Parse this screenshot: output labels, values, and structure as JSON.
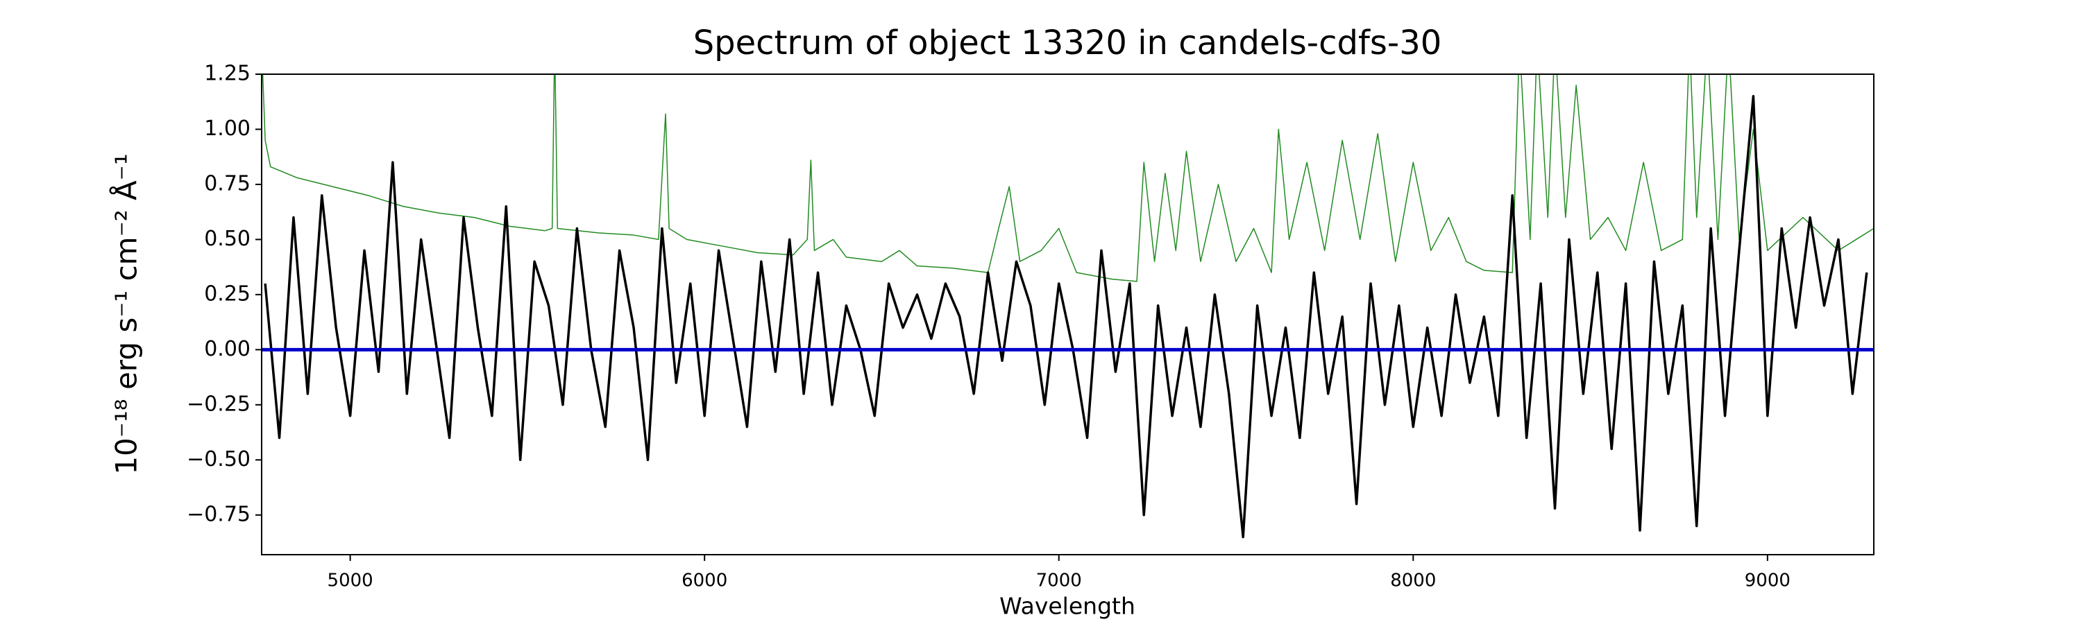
{
  "chart_data": {
    "type": "line",
    "title": "Spectrum of object 13320 in candels-cdfs-30",
    "xlabel": "Wavelength",
    "ylabel": "10⁻¹⁸ erg s⁻¹ cm⁻² Å⁻¹",
    "xlim": [
      4750,
      9300
    ],
    "ylim": [
      -0.93,
      1.25
    ],
    "xticks": [
      5000,
      6000,
      7000,
      8000,
      9000
    ],
    "yticks": [
      1.25,
      {
        "value": 1.0,
        "label": "1.00"
      },
      0.75,
      {
        "value": 0.5,
        "label": "0.50"
      },
      0.25,
      {
        "value": 0,
        "label": "0.00"
      },
      {
        "value": -0.25,
        "label": "−0.25"
      },
      {
        "value": -0.5,
        "label": "−0.50"
      },
      {
        "value": -0.75,
        "label": "−0.75"
      }
    ],
    "series": [
      {
        "color": "#228b22",
        "width": 1.5,
        "x": [
          4752,
          4760,
          4775,
          4850,
          4950,
          5050,
          5150,
          5250,
          5350,
          5450,
          5550,
          5570,
          5577,
          5585,
          5700,
          5800,
          5870,
          5890,
          5900,
          5950,
          6050,
          6150,
          6250,
          6290,
          6300,
          6310,
          6363,
          6400,
          6500,
          6550,
          6600,
          6700,
          6800,
          6830,
          6860,
          6890,
          6950,
          7000,
          7050,
          7150,
          7220,
          7240,
          7270,
          7300,
          7330,
          7360,
          7400,
          7450,
          7500,
          7550,
          7600,
          7620,
          7650,
          7700,
          7750,
          7800,
          7850,
          7900,
          7950,
          8000,
          8050,
          8100,
          8150,
          8200,
          8280,
          8300,
          8330,
          8350,
          8380,
          8400,
          8430,
          8460,
          8500,
          8550,
          8600,
          8650,
          8700,
          8760,
          8780,
          8800,
          8830,
          8860,
          8890,
          8920,
          8960,
          9000,
          9100,
          9200,
          9300
        ],
        "values": [
          1.3,
          0.95,
          0.83,
          0.78,
          0.74,
          0.7,
          0.65,
          0.62,
          0.6,
          0.56,
          0.54,
          0.55,
          1.4,
          0.55,
          0.53,
          0.52,
          0.5,
          1.07,
          0.55,
          0.5,
          0.47,
          0.44,
          0.43,
          0.5,
          0.86,
          0.45,
          0.5,
          0.42,
          0.4,
          0.45,
          0.38,
          0.37,
          0.35,
          0.55,
          0.74,
          0.4,
          0.45,
          0.55,
          0.35,
          0.32,
          0.31,
          0.85,
          0.4,
          0.8,
          0.45,
          0.9,
          0.4,
          0.75,
          0.4,
          0.55,
          0.35,
          1.0,
          0.5,
          0.85,
          0.45,
          0.95,
          0.5,
          0.98,
          0.4,
          0.85,
          0.45,
          0.6,
          0.4,
          0.36,
          0.35,
          1.4,
          0.5,
          1.4,
          0.6,
          1.4,
          0.6,
          1.2,
          0.5,
          0.6,
          0.45,
          0.85,
          0.45,
          0.5,
          1.4,
          0.6,
          1.4,
          0.5,
          1.4,
          0.5,
          1.0,
          0.45,
          0.6,
          0.45,
          0.55
        ]
      },
      {
        "color": "#000000",
        "width": 3.5,
        "x": [
          4760,
          4800,
          4840,
          4880,
          4920,
          4960,
          5000,
          5040,
          5080,
          5120,
          5160,
          5200,
          5240,
          5280,
          5320,
          5360,
          5400,
          5440,
          5480,
          5520,
          5560,
          5600,
          5640,
          5680,
          5720,
          5760,
          5800,
          5840,
          5880,
          5920,
          5960,
          6000,
          6040,
          6080,
          6120,
          6160,
          6200,
          6240,
          6280,
          6320,
          6360,
          6400,
          6440,
          6480,
          6520,
          6560,
          6600,
          6640,
          6680,
          6720,
          6760,
          6800,
          6840,
          6880,
          6920,
          6960,
          7000,
          7040,
          7080,
          7120,
          7160,
          7200,
          7240,
          7280,
          7320,
          7360,
          7400,
          7440,
          7480,
          7520,
          7560,
          7600,
          7640,
          7680,
          7720,
          7760,
          7800,
          7840,
          7880,
          7920,
          7960,
          8000,
          8040,
          8080,
          8120,
          8160,
          8200,
          8240,
          8280,
          8320,
          8360,
          8400,
          8440,
          8480,
          8520,
          8560,
          8600,
          8640,
          8680,
          8720,
          8760,
          8800,
          8840,
          8880,
          8920,
          8960,
          9000,
          9040,
          9080,
          9120,
          9160,
          9200,
          9240,
          9280
        ],
        "values": [
          0.3,
          -0.4,
          0.6,
          -0.2,
          0.7,
          0.1,
          -0.3,
          0.45,
          -0.1,
          0.85,
          -0.2,
          0.5,
          0.05,
          -0.4,
          0.6,
          0.1,
          -0.3,
          0.65,
          -0.5,
          0.4,
          0.2,
          -0.25,
          0.55,
          0.0,
          -0.35,
          0.45,
          0.1,
          -0.5,
          0.55,
          -0.15,
          0.3,
          -0.3,
          0.45,
          0.05,
          -0.35,
          0.4,
          -0.1,
          0.5,
          -0.2,
          0.35,
          -0.25,
          0.2,
          0.0,
          -0.3,
          0.3,
          0.1,
          0.25,
          0.05,
          0.3,
          0.15,
          -0.2,
          0.35,
          -0.05,
          0.4,
          0.2,
          -0.25,
          0.3,
          0.0,
          -0.4,
          0.45,
          -0.1,
          0.3,
          -0.75,
          0.2,
          -0.3,
          0.1,
          -0.35,
          0.25,
          -0.2,
          -0.85,
          0.2,
          -0.3,
          0.1,
          -0.4,
          0.35,
          -0.2,
          0.15,
          -0.7,
          0.3,
          -0.25,
          0.2,
          -0.35,
          0.1,
          -0.3,
          0.25,
          -0.15,
          0.15,
          -0.3,
          0.7,
          -0.4,
          0.3,
          -0.72,
          0.5,
          -0.2,
          0.35,
          -0.45,
          0.3,
          -0.82,
          0.4,
          -0.2,
          0.2,
          -0.8,
          0.55,
          -0.3,
          0.45,
          1.15,
          -0.3,
          0.55,
          0.1,
          0.6,
          0.2,
          0.5,
          -0.2,
          0.35
        ]
      },
      {
        "color": "#0000cc",
        "width": 5,
        "x": [
          4750,
          9300
        ],
        "values": [
          0,
          0
        ]
      }
    ]
  }
}
